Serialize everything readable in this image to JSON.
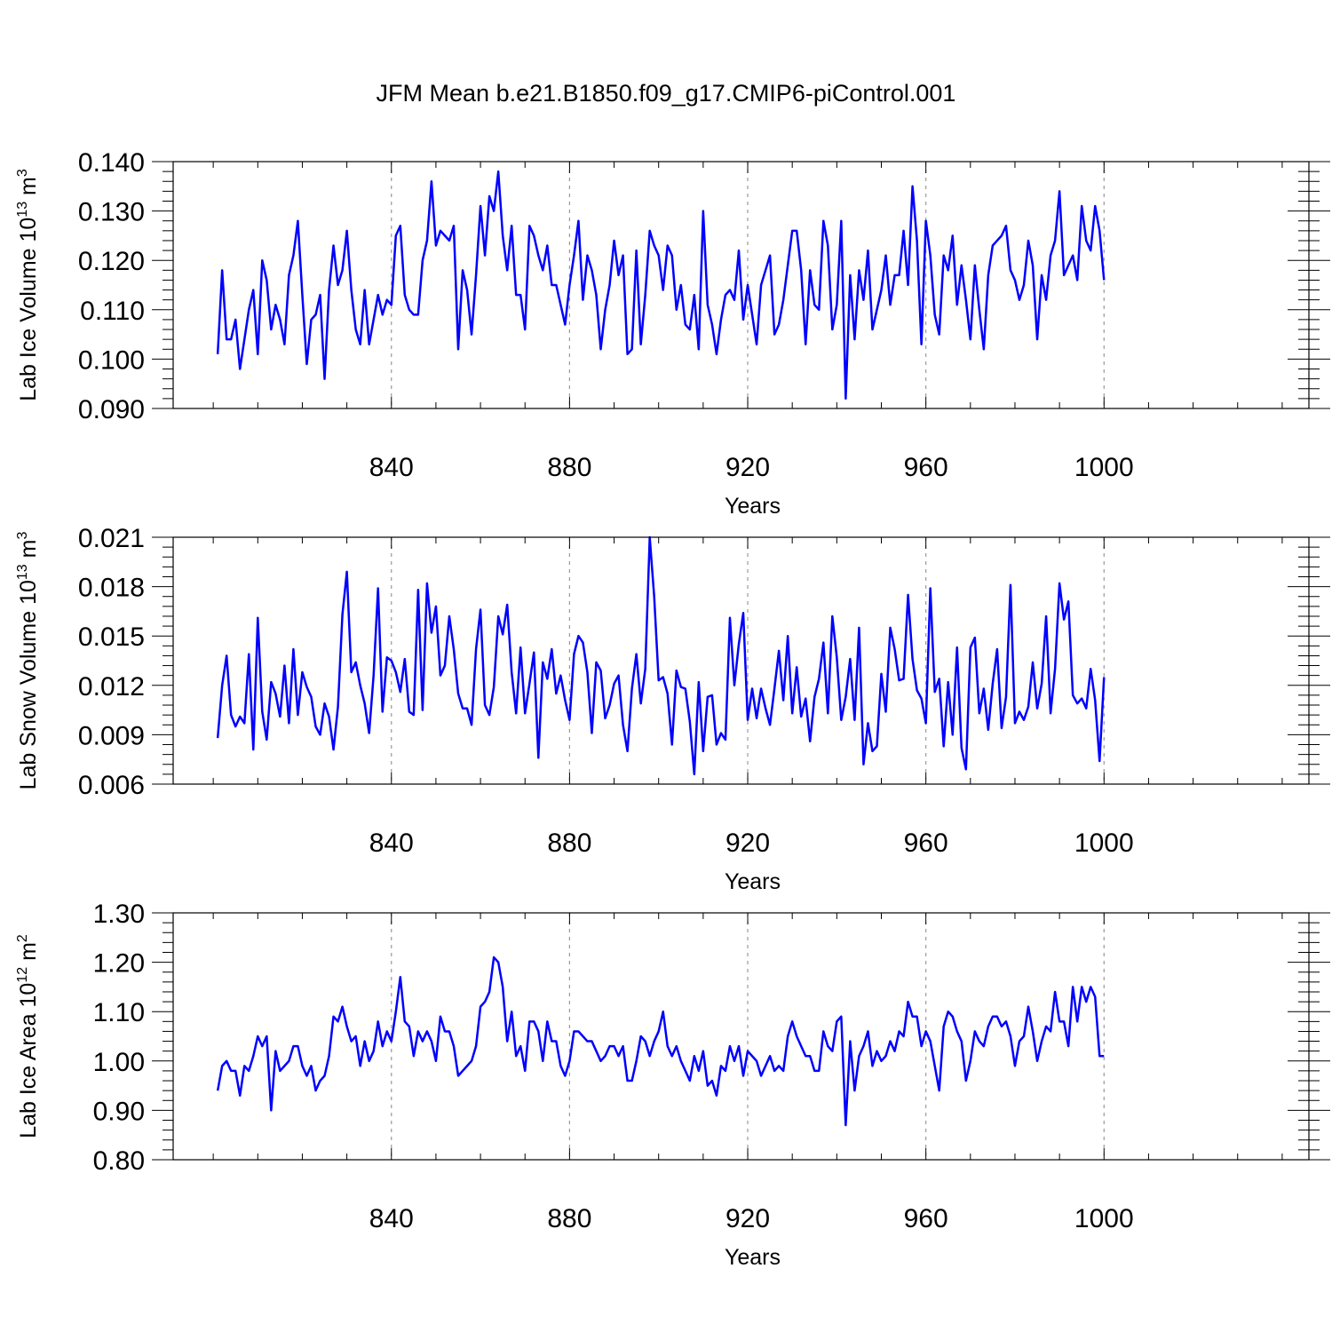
{
  "title": "JFM Mean b.e21.B1850.f09_g17.CMIP6-piControl.001",
  "line_color": "#0000ff",
  "chart_data": [
    {
      "type": "line",
      "ylabel": "Lab Ice Volume 10",
      "ylabel_sup": "13",
      "ylabel_unit": "m",
      "ylabel_unit_sup": "3",
      "xlabel": "Years",
      "xlim": [
        801,
        1000
      ],
      "ylim": [
        0.09,
        0.14
      ],
      "yticks": [
        0.09,
        0.1,
        0.11,
        0.12,
        0.13,
        0.14
      ],
      "ytick_labels": [
        "0.090",
        "0.100",
        "0.110",
        "0.120",
        "0.130",
        "0.140"
      ],
      "xticks": [
        840,
        880,
        920,
        960,
        1000
      ],
      "xtick_labels": [
        "840",
        "880",
        "920",
        "960",
        "1000"
      ],
      "x_start": 801,
      "values": [
        0.101,
        0.118,
        0.104,
        0.104,
        0.108,
        0.098,
        0.104,
        0.11,
        0.114,
        0.101,
        0.12,
        0.116,
        0.106,
        0.111,
        0.108,
        0.103,
        0.117,
        0.121,
        0.128,
        0.113,
        0.099,
        0.108,
        0.109,
        0.113,
        0.096,
        0.114,
        0.123,
        0.115,
        0.118,
        0.126,
        0.114,
        0.106,
        0.103,
        0.114,
        0.103,
        0.108,
        0.113,
        0.109,
        0.112,
        0.111,
        0.125,
        0.127,
        0.113,
        0.11,
        0.109,
        0.109,
        0.12,
        0.124,
        0.136,
        0.123,
        0.126,
        0.125,
        0.124,
        0.127,
        0.102,
        0.118,
        0.114,
        0.105,
        0.117,
        0.131,
        0.121,
        0.133,
        0.13,
        0.138,
        0.125,
        0.118,
        0.127,
        0.113,
        0.113,
        0.106,
        0.127,
        0.125,
        0.121,
        0.118,
        0.123,
        0.115,
        0.115,
        0.111,
        0.107,
        0.115,
        0.121,
        0.128,
        0.112,
        0.121,
        0.118,
        0.113,
        0.102,
        0.11,
        0.115,
        0.124,
        0.117,
        0.121,
        0.101,
        0.102,
        0.122,
        0.103,
        0.113,
        0.126,
        0.123,
        0.121,
        0.114,
        0.123,
        0.121,
        0.11,
        0.115,
        0.107,
        0.106,
        0.113,
        0.102,
        0.13,
        0.111,
        0.107,
        0.101,
        0.108,
        0.113,
        0.114,
        0.112,
        0.122,
        0.108,
        0.115,
        0.109,
        0.103,
        0.115,
        0.118,
        0.121,
        0.105,
        0.107,
        0.112,
        0.119,
        0.126,
        0.126,
        0.118,
        0.103,
        0.118,
        0.111,
        0.11,
        0.128,
        0.123,
        0.106,
        0.111,
        0.128,
        0.092,
        0.117,
        0.104,
        0.118,
        0.112,
        0.122,
        0.106,
        0.11,
        0.114,
        0.121,
        0.111,
        0.117,
        0.117,
        0.126,
        0.115,
        0.135,
        0.124,
        0.103,
        0.128,
        0.121,
        0.109,
        0.105,
        0.121,
        0.118,
        0.125,
        0.111,
        0.119,
        0.112,
        0.104,
        0.119,
        0.11,
        0.102,
        0.117,
        0.123,
        0.124,
        0.125,
        0.127,
        0.118,
        0.116,
        0.112,
        0.115,
        0.124,
        0.119,
        0.104,
        0.117,
        0.112,
        0.121,
        0.124,
        0.134,
        0.117,
        0.119,
        0.121,
        0.116,
        0.131,
        0.124,
        0.122,
        0.131,
        0.126,
        0.116
      ]
    },
    {
      "type": "line",
      "ylabel": "Lab Snow Volume 10",
      "ylabel_sup": "13",
      "ylabel_unit": "m",
      "ylabel_unit_sup": "3",
      "xlabel": "Years",
      "xlim": [
        801,
        1000
      ],
      "ylim": [
        0.006,
        0.021
      ],
      "yticks": [
        0.006,
        0.009,
        0.012,
        0.015,
        0.018,
        0.021
      ],
      "ytick_labels": [
        "0.006",
        "0.009",
        "0.012",
        "0.015",
        "0.018",
        "0.021"
      ],
      "xticks": [
        840,
        880,
        920,
        960,
        1000
      ],
      "xtick_labels": [
        "840",
        "880",
        "920",
        "960",
        "1000"
      ],
      "x_start": 801,
      "values": [
        0.0088,
        0.012,
        0.0138,
        0.0102,
        0.0095,
        0.0101,
        0.0097,
        0.0139,
        0.0081,
        0.0161,
        0.0104,
        0.0087,
        0.0122,
        0.0115,
        0.0101,
        0.0132,
        0.0097,
        0.0142,
        0.0102,
        0.0128,
        0.0119,
        0.0113,
        0.0095,
        0.009,
        0.0109,
        0.0101,
        0.0081,
        0.0107,
        0.0163,
        0.0189,
        0.0128,
        0.0134,
        0.012,
        0.0109,
        0.0091,
        0.0126,
        0.0179,
        0.0104,
        0.0137,
        0.0135,
        0.0128,
        0.0116,
        0.0136,
        0.0104,
        0.0102,
        0.0178,
        0.0105,
        0.0182,
        0.0152,
        0.0168,
        0.0126,
        0.0132,
        0.0162,
        0.0142,
        0.0115,
        0.0106,
        0.0106,
        0.0096,
        0.0142,
        0.0166,
        0.0108,
        0.0102,
        0.0119,
        0.0162,
        0.0151,
        0.0169,
        0.0128,
        0.0103,
        0.0143,
        0.0103,
        0.0121,
        0.014,
        0.0076,
        0.0134,
        0.0124,
        0.0142,
        0.0115,
        0.0126,
        0.0111,
        0.0099,
        0.0139,
        0.015,
        0.0146,
        0.0128,
        0.0091,
        0.0134,
        0.0129,
        0.01,
        0.0108,
        0.0121,
        0.0126,
        0.0096,
        0.008,
        0.0118,
        0.0139,
        0.0109,
        0.013,
        0.021,
        0.0174,
        0.0123,
        0.0125,
        0.0115,
        0.0084,
        0.0129,
        0.0119,
        0.0118,
        0.0098,
        0.0066,
        0.0122,
        0.008,
        0.0113,
        0.0114,
        0.0084,
        0.0091,
        0.0087,
        0.0161,
        0.012,
        0.0145,
        0.0164,
        0.0099,
        0.0118,
        0.01,
        0.0118,
        0.0106,
        0.0096,
        0.0118,
        0.0141,
        0.0111,
        0.015,
        0.0103,
        0.0131,
        0.0101,
        0.0112,
        0.0086,
        0.0113,
        0.0124,
        0.0146,
        0.0103,
        0.0162,
        0.0137,
        0.0099,
        0.0113,
        0.0136,
        0.0099,
        0.0155,
        0.0072,
        0.0097,
        0.008,
        0.0083,
        0.0127,
        0.0104,
        0.0155,
        0.0142,
        0.0123,
        0.0124,
        0.0175,
        0.0136,
        0.0117,
        0.0112,
        0.0097,
        0.0179,
        0.0116,
        0.0124,
        0.0083,
        0.0122,
        0.009,
        0.0143,
        0.0082,
        0.0069,
        0.0143,
        0.0149,
        0.0103,
        0.0118,
        0.0093,
        0.0121,
        0.0142,
        0.0094,
        0.0113,
        0.0181,
        0.0097,
        0.0104,
        0.0099,
        0.0107,
        0.0134,
        0.0106,
        0.0121,
        0.0162,
        0.0103,
        0.013,
        0.0182,
        0.016,
        0.0171,
        0.0114,
        0.0109,
        0.0112,
        0.0106,
        0.013,
        0.0111,
        0.0074,
        0.0125
      ]
    },
    {
      "type": "line",
      "ylabel": "Lab Ice Area 10",
      "ylabel_sup": "12",
      "ylabel_unit": "m",
      "ylabel_unit_sup": "2",
      "xlabel": "Years",
      "xlim": [
        801,
        1000
      ],
      "ylim": [
        0.8,
        1.3
      ],
      "yticks": [
        0.8,
        0.9,
        1.0,
        1.1,
        1.2,
        1.3
      ],
      "ytick_labels": [
        "0.80",
        "0.90",
        "1.00",
        "1.10",
        "1.20",
        "1.30"
      ],
      "xticks": [
        840,
        880,
        920,
        960,
        1000
      ],
      "xtick_labels": [
        "840",
        "880",
        "920",
        "960",
        "1000"
      ],
      "x_start": 801,
      "values": [
        0.94,
        0.99,
        1.0,
        0.98,
        0.98,
        0.93,
        0.99,
        0.98,
        1.01,
        1.05,
        1.03,
        1.05,
        0.9,
        1.02,
        0.98,
        0.99,
        1.0,
        1.03,
        1.03,
        0.99,
        0.97,
        0.99,
        0.94,
        0.96,
        0.97,
        1.01,
        1.09,
        1.08,
        1.11,
        1.07,
        1.04,
        1.05,
        0.99,
        1.04,
        1.0,
        1.02,
        1.08,
        1.03,
        1.06,
        1.04,
        1.1,
        1.17,
        1.08,
        1.07,
        1.01,
        1.06,
        1.04,
        1.06,
        1.04,
        1.0,
        1.09,
        1.06,
        1.06,
        1.03,
        0.97,
        0.98,
        0.99,
        1.0,
        1.03,
        1.11,
        1.12,
        1.14,
        1.21,
        1.2,
        1.15,
        1.04,
        1.1,
        1.01,
        1.03,
        0.98,
        1.08,
        1.08,
        1.06,
        1.0,
        1.08,
        1.04,
        1.04,
        0.99,
        0.97,
        1.0,
        1.06,
        1.06,
        1.05,
        1.04,
        1.04,
        1.02,
        1.0,
        1.01,
        1.03,
        1.03,
        1.01,
        1.03,
        0.96,
        0.96,
        1.0,
        1.05,
        1.04,
        1.01,
        1.04,
        1.06,
        1.1,
        1.03,
        1.01,
        1.03,
        1.0,
        0.98,
        0.96,
        1.01,
        0.98,
        1.02,
        0.95,
        0.96,
        0.93,
        0.99,
        0.98,
        1.03,
        1.0,
        1.03,
        0.97,
        1.02,
        1.01,
        1.0,
        0.97,
        0.99,
        1.01,
        0.98,
        0.99,
        0.98,
        1.05,
        1.08,
        1.05,
        1.03,
        1.01,
        1.01,
        0.98,
        0.98,
        1.06,
        1.03,
        1.02,
        1.08,
        1.09,
        0.87,
        1.04,
        0.94,
        1.01,
        1.03,
        1.06,
        0.99,
        1.02,
        1.0,
        1.01,
        1.04,
        1.02,
        1.06,
        1.05,
        1.12,
        1.09,
        1.09,
        1.03,
        1.06,
        1.04,
        0.99,
        0.94,
        1.07,
        1.1,
        1.09,
        1.06,
        1.04,
        0.96,
        1.0,
        1.06,
        1.04,
        1.03,
        1.07,
        1.09,
        1.09,
        1.07,
        1.08,
        1.05,
        0.99,
        1.04,
        1.05,
        1.11,
        1.06,
        1.0,
        1.04,
        1.07,
        1.06,
        1.14,
        1.08,
        1.08,
        1.03,
        1.15,
        1.08,
        1.15,
        1.12,
        1.15,
        1.13,
        1.01,
        1.01
      ]
    }
  ]
}
